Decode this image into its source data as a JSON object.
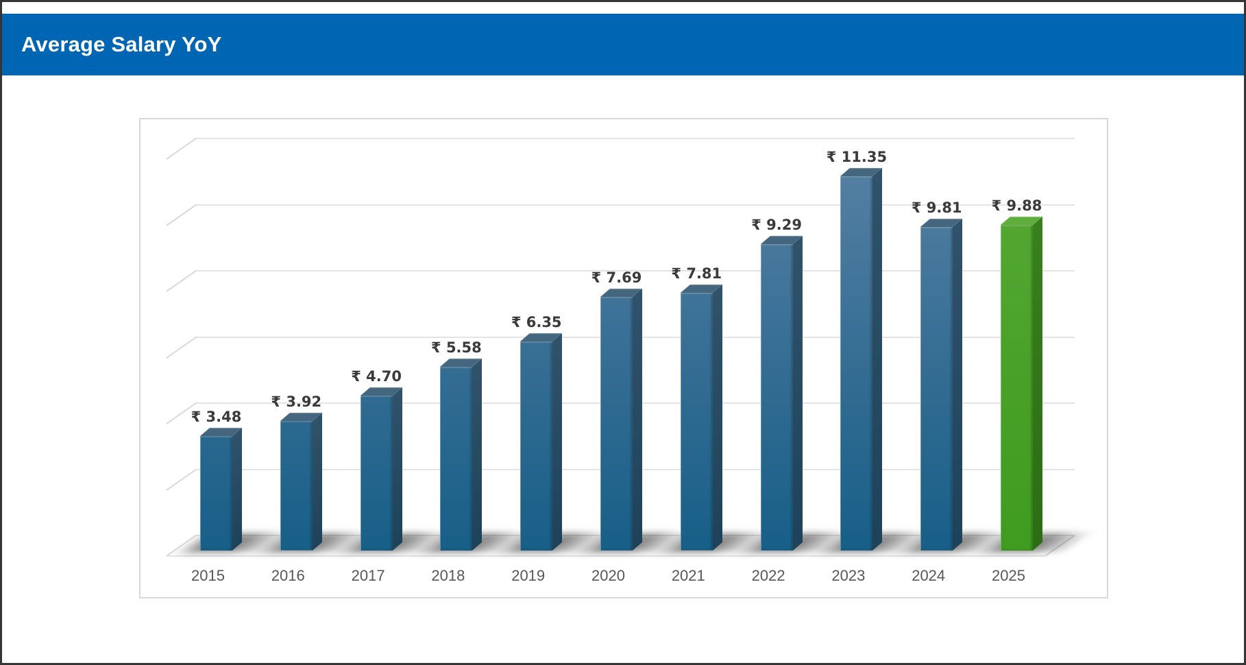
{
  "header": {
    "title": "Average Salary YoY"
  },
  "chart_data": {
    "type": "bar",
    "title": "Average Salary YoY",
    "categories": [
      "2015",
      "2016",
      "2017",
      "2018",
      "2019",
      "2020",
      "2021",
      "2022",
      "2023",
      "2024",
      "2025"
    ],
    "values": [
      3.48,
      3.92,
      4.7,
      5.58,
      6.35,
      7.69,
      7.81,
      9.29,
      11.35,
      9.81,
      9.88
    ],
    "value_labels": [
      "₹ 3.48",
      "₹ 3.92",
      "₹ 4.70",
      "₹ 5.58",
      "₹ 6.35",
      "₹ 7.69",
      "₹ 7.81",
      "₹ 9.29",
      "₹ 11.35",
      "₹ 9.81",
      "₹ 9.88"
    ],
    "currency_symbol": "₹",
    "xlabel": "",
    "ylabel": "",
    "ylim": [
      0,
      12
    ],
    "grid_step": 2,
    "grid": "on",
    "legend": "none",
    "style": "3d-column",
    "highlight_index": 10
  },
  "colors": {
    "header_bg": "#0065b2",
    "header_text": "#ffffff",
    "page_border": "#353535",
    "panel_border": "#d8d8d8",
    "grid_line": "#e4e4e6",
    "grid_diag": "#d9d9db",
    "value_label": "#3a3a3a",
    "year_label": "#575757",
    "shadow": "rgba(45,45,45,0.55)",
    "bar_blue": {
      "front_top": "#527fa2",
      "front_mid": "#356d93",
      "front_bottom": "#175f88",
      "side_top": "#30536b",
      "side_bottom": "#1d4259",
      "top_face": "#44677f"
    },
    "bar_green": {
      "front_top": "#55a934",
      "front_mid": "#4aa129",
      "front_bottom": "#3f9c20",
      "side_top": "#38801d",
      "side_bottom": "#2b6d14",
      "top_face": "#5fae3c"
    }
  }
}
